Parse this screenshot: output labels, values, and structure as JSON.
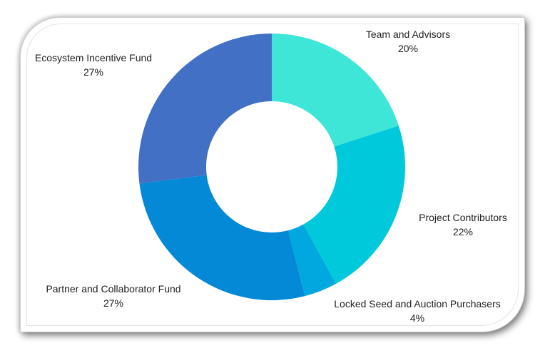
{
  "chart_data": {
    "type": "pie",
    "donut": true,
    "title": "",
    "legend": "none",
    "slices": [
      {
        "label": "Team and Advisors",
        "value": 20,
        "pct_label": "20%",
        "color": "#3de6d6"
      },
      {
        "label": "Project Contributors",
        "value": 22,
        "pct_label": "22%",
        "color": "#00c9dc"
      },
      {
        "label": "Locked Seed and Auction Purchasers",
        "value": 4,
        "pct_label": "4%",
        "color": "#00a8e0"
      },
      {
        "label": "Partner and Collaborator Fund",
        "value": 27,
        "pct_label": "27%",
        "color": "#0389d6"
      },
      {
        "label": "Ecosystem Incentive Fund",
        "value": 27,
        "pct_label": "27%",
        "color": "#4270c4"
      }
    ]
  }
}
